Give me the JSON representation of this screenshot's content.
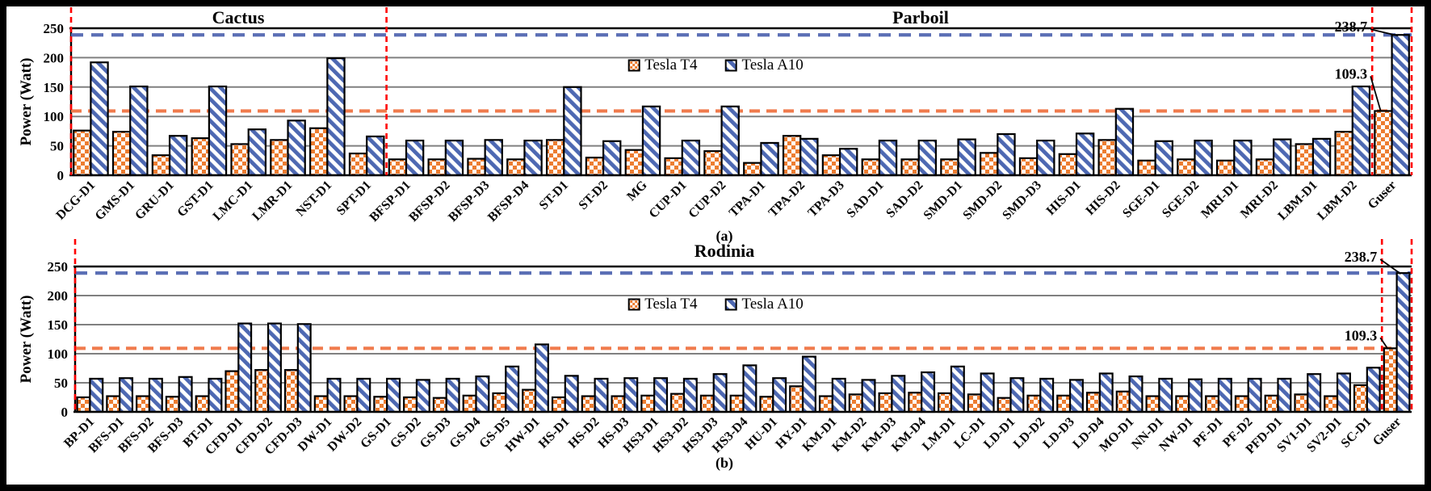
{
  "figure": {
    "legend": {
      "t4": "Tesla T4",
      "a10": "Tesla A10"
    },
    "ylabel": "Power (Watt)",
    "yticks": [
      0,
      50,
      100,
      150,
      200,
      250
    ],
    "colors": {
      "t4_orange": "#ED7D31",
      "a10_blue": "#4D68B2",
      "hline_t4": "#F07B4D",
      "hline_a10": "#5B6FB5",
      "red_divider": "#FF0000",
      "gridline": "#808080",
      "axis_black": "#000000"
    },
    "hlines": [
      {
        "value": 238.7,
        "series": "Tesla A10"
      },
      {
        "value": 109.3,
        "series": "Tesla T4"
      }
    ]
  },
  "chart_data": [
    {
      "type": "bar",
      "panel": "a",
      "caption": "(a)",
      "ylabel": "Power (Watt)",
      "ylim": [
        0,
        250
      ],
      "grid": true,
      "legend_position": "top-center-inside",
      "sections": [
        {
          "label": "Cactus",
          "span": [
            0,
            8
          ]
        },
        {
          "label": "Parboil",
          "span": [
            8,
            34
          ]
        }
      ],
      "divider_boundaries": [
        0,
        8,
        33,
        34
      ],
      "categories": [
        "DCG-D1",
        "GMS-D1",
        "GRU-D1",
        "GST-D1",
        "LMC-D1",
        "LMR-D1",
        "NST-D1",
        "SPT-D1",
        "BFSP-D1",
        "BFSP-D2",
        "BFSP-D3",
        "BFSP-D4",
        "ST-D1",
        "ST-D2",
        "MG",
        "CUP-D1",
        "CUP-D2",
        "TPA-D1",
        "TPA-D2",
        "TPA-D3",
        "SAD-D1",
        "SAD-D2",
        "SMD-D1",
        "SMD-D2",
        "SMD-D3",
        "HIS-D1",
        "HIS-D2",
        "SGE-D1",
        "SGE-D2",
        "MRI-D1",
        "MRI-D2",
        "LBM-D1",
        "LBM-D2",
        "Guser"
      ],
      "series": [
        {
          "name": "Tesla T4",
          "values": [
            76,
            74,
            34,
            63,
            53,
            60,
            80,
            37,
            27,
            27,
            28,
            27,
            60,
            30,
            43,
            29,
            41,
            21,
            67,
            34,
            27,
            27,
            27,
            38,
            29,
            36,
            60,
            25,
            27,
            25,
            27,
            53,
            74,
            109.3
          ]
        },
        {
          "name": "Tesla A10",
          "values": [
            192,
            151,
            67,
            151,
            78,
            93,
            199,
            66,
            59,
            59,
            60,
            59,
            150,
            58,
            117,
            59,
            117,
            55,
            62,
            45,
            59,
            59,
            61,
            70,
            59,
            71,
            113,
            58,
            59,
            59,
            61,
            62,
            151,
            238.7
          ]
        }
      ],
      "annotations": [
        {
          "text": "238.7",
          "target_category": "Guser",
          "target_series": "Tesla A10"
        },
        {
          "text": "109.3",
          "target_category": "Guser",
          "target_series": "Tesla T4"
        }
      ]
    },
    {
      "type": "bar",
      "panel": "b",
      "caption": "(b)",
      "ylabel": "Power (Watt)",
      "ylim": [
        0,
        250
      ],
      "grid": true,
      "legend_position": "top-center-inside",
      "sections": [
        {
          "label": "Rodinia",
          "span": [
            0,
            45
          ]
        }
      ],
      "divider_boundaries": [
        0,
        44,
        45
      ],
      "categories": [
        "BP-D1",
        "BFS-D1",
        "BFS-D2",
        "BFS-D3",
        "BT-D1",
        "CFD-D1",
        "CFD-D2",
        "CFD-D3",
        "DW-D1",
        "DW-D2",
        "GS-D1",
        "GS-D2",
        "GS-D3",
        "GS-D4",
        "GS-D5",
        "HW-D1",
        "HS-D1",
        "HS-D2",
        "HS-D3",
        "HS3-D1",
        "HS3-D2",
        "HS3-D3",
        "HS3-D4",
        "HU-D1",
        "HY-D1",
        "KM-D1",
        "KM-D2",
        "KM-D3",
        "KM-D4",
        "LM-D1",
        "LC-D1",
        "LD-D1",
        "LD-D2",
        "LD-D3",
        "LD-D4",
        "MO-D1",
        "NN-D1",
        "NW-D1",
        "PF-D1",
        "PF-D2",
        "PFD-D1",
        "SV1-D1",
        "SV2-D1",
        "SC-D1",
        "Guser"
      ],
      "series": [
        {
          "name": "Tesla T4",
          "values": [
            25,
            27,
            27,
            26,
            27,
            70,
            72,
            72,
            27,
            27,
            26,
            25,
            24,
            28,
            32,
            38,
            25,
            27,
            27,
            28,
            31,
            28,
            28,
            26,
            44,
            27,
            30,
            32,
            33,
            32,
            30,
            24,
            28,
            28,
            33,
            35,
            27,
            27,
            27,
            27,
            28,
            30,
            27,
            46,
            109.3
          ]
        },
        {
          "name": "Tesla A10",
          "values": [
            57,
            58,
            57,
            60,
            57,
            152,
            152,
            151,
            57,
            57,
            57,
            55,
            57,
            61,
            78,
            116,
            62,
            57,
            58,
            58,
            57,
            65,
            80,
            58,
            95,
            57,
            55,
            62,
            68,
            78,
            66,
            58,
            57,
            55,
            66,
            61,
            57,
            56,
            57,
            57,
            57,
            65,
            66,
            76,
            238.7
          ]
        }
      ],
      "annotations": [
        {
          "text": "238.7",
          "target_category": "Guser",
          "target_series": "Tesla A10"
        },
        {
          "text": "109.3",
          "target_category": "Guser",
          "target_series": "Tesla T4"
        }
      ]
    }
  ]
}
